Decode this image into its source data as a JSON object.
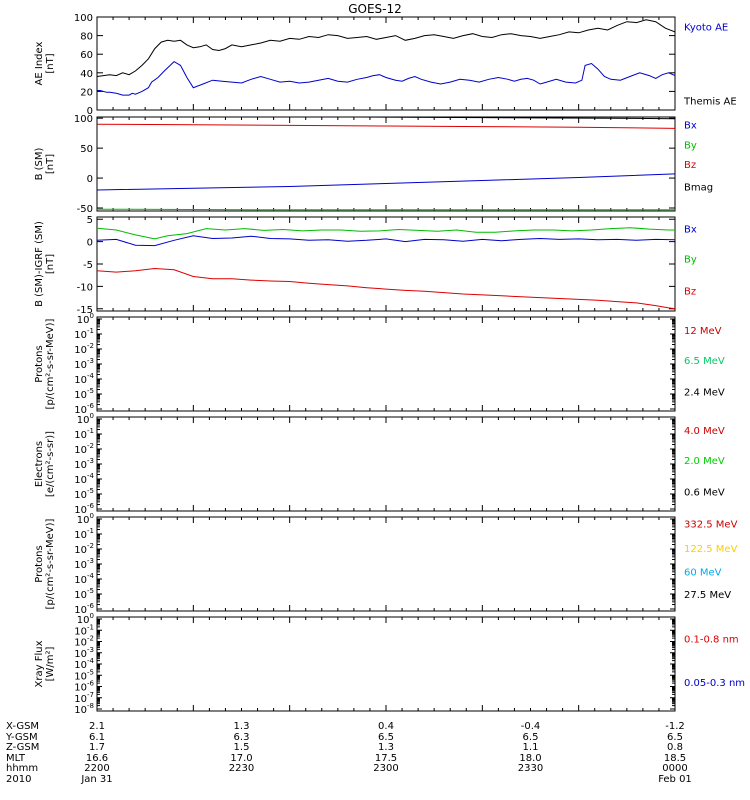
{
  "title": "GOES-12",
  "chart_data": [
    {
      "type": "line",
      "ylabel": [
        "AE Index",
        "[nT]"
      ],
      "ylim": [
        0,
        100
      ],
      "yticks": [
        "0",
        "20",
        "40",
        "60",
        "80",
        "100"
      ],
      "series": [
        {
          "name": "Kyoto AE",
          "color": "#0000cc",
          "label_offset": 0.1,
          "x": [
            0,
            1,
            3,
            4,
            6,
            8,
            10,
            11,
            12,
            14,
            16,
            17,
            19,
            21,
            24,
            26,
            28,
            30,
            33,
            36,
            39,
            42,
            45,
            48,
            51,
            54,
            57,
            60,
            63,
            66,
            69,
            72,
            75,
            78,
            81,
            84,
            86,
            88,
            90,
            93,
            95,
            97,
            99,
            101,
            104,
            107,
            110,
            113,
            116,
            119,
            122,
            125,
            128,
            130,
            132,
            134,
            136,
            138,
            140,
            143,
            146,
            149,
            151,
            152,
            154,
            156,
            158,
            160,
            163,
            166,
            169,
            172,
            174,
            176,
            178,
            180
          ],
          "y": [
            21,
            21,
            19,
            19,
            18,
            16,
            16,
            18,
            17,
            20,
            24,
            30,
            35,
            42,
            52,
            48,
            35,
            24,
            28,
            32,
            31,
            30,
            29,
            33,
            36,
            33,
            30,
            31,
            29,
            30,
            32,
            34,
            31,
            30,
            33,
            35,
            37,
            38,
            35,
            32,
            31,
            34,
            36,
            33,
            30,
            28,
            30,
            33,
            32,
            30,
            33,
            35,
            33,
            31,
            33,
            34,
            32,
            28,
            30,
            33,
            30,
            29,
            32,
            48,
            50,
            44,
            36,
            33,
            32,
            36,
            40,
            37,
            34,
            38,
            40,
            37
          ]
        },
        {
          "name": "Themis AE",
          "color": "#000000",
          "label_offset": 0.9,
          "x": [
            0,
            2,
            4,
            6,
            8,
            10,
            12,
            14,
            16,
            18,
            20,
            22,
            24,
            26,
            28,
            30,
            32,
            34,
            36,
            38,
            40,
            42,
            45,
            48,
            51,
            54,
            57,
            60,
            63,
            66,
            69,
            72,
            75,
            78,
            81,
            84,
            87,
            90,
            93,
            96,
            99,
            102,
            105,
            108,
            111,
            114,
            117,
            120,
            123,
            126,
            129,
            132,
            135,
            138,
            141,
            144,
            147,
            150,
            153,
            156,
            159,
            162,
            165,
            168,
            171,
            174,
            177,
            180
          ],
          "y": [
            36,
            37,
            38,
            37,
            40,
            38,
            42,
            48,
            55,
            66,
            73,
            75,
            74,
            75,
            70,
            67,
            68,
            70,
            65,
            64,
            66,
            70,
            68,
            70,
            72,
            75,
            74,
            77,
            76,
            79,
            78,
            81,
            80,
            77,
            78,
            79,
            76,
            78,
            80,
            75,
            77,
            80,
            81,
            79,
            77,
            80,
            82,
            79,
            78,
            81,
            82,
            80,
            79,
            77,
            79,
            81,
            84,
            83,
            86,
            88,
            86,
            91,
            95,
            94,
            97,
            95,
            88,
            84
          ]
        }
      ]
    },
    {
      "type": "line",
      "ylabel": [
        "B (SM)",
        "[nT]"
      ],
      "ylim": [
        -55,
        102
      ],
      "yticks": [
        "-50",
        "0",
        "50",
        "100"
      ],
      "series": [
        {
          "name": "Bx",
          "color": "#0000cc",
          "label_offset": 0.08,
          "x": [
            0,
            30,
            60,
            90,
            120,
            150,
            180
          ],
          "y": [
            -20,
            -17,
            -14,
            -9,
            -4,
            1,
            7
          ]
        },
        {
          "name": "By",
          "color": "#00bb00",
          "label_offset": 0.29,
          "x": [
            0,
            60,
            120,
            180
          ],
          "y": [
            -52,
            -53,
            -53,
            -53
          ]
        },
        {
          "name": "Bz",
          "color": "#dd0000",
          "label_offset": 0.5,
          "x": [
            0,
            30,
            60,
            90,
            120,
            150,
            180
          ],
          "y": [
            90,
            89,
            88,
            87,
            86,
            85,
            83
          ]
        },
        {
          "name": "Bmag",
          "color": "#000000",
          "label_offset": 0.74,
          "x": [
            0,
            40,
            80,
            120,
            160,
            180
          ],
          "y": [
            103,
            103,
            102,
            101,
            100,
            99
          ]
        }
      ]
    },
    {
      "type": "line",
      "ylabel": [
        "B (SM)-IGRF (SM)",
        "[nT]"
      ],
      "ylim": [
        -15.5,
        5.5
      ],
      "yticks": [
        "-15",
        "-10",
        "-5",
        "0",
        "5"
      ],
      "series": [
        {
          "name": "Bx",
          "color": "#0000cc",
          "label_offset": 0.12,
          "x": [
            0,
            6,
            12,
            18,
            24,
            30,
            36,
            42,
            48,
            54,
            60,
            66,
            72,
            78,
            84,
            90,
            96,
            102,
            108,
            114,
            120,
            126,
            132,
            138,
            144,
            150,
            156,
            162,
            168,
            174,
            180
          ],
          "y": [
            0.3,
            0.5,
            -0.8,
            -0.9,
            0.3,
            1.3,
            0.7,
            0.8,
            1.2,
            0.7,
            0.6,
            0.3,
            0.4,
            0.1,
            0.3,
            0.6,
            0.0,
            0.5,
            0.4,
            0.1,
            0.5,
            0.2,
            0.5,
            0.7,
            0.5,
            0.6,
            0.4,
            0.5,
            0.3,
            0.5,
            0.4
          ]
        },
        {
          "name": "By",
          "color": "#00bb00",
          "label_offset": 0.44,
          "x": [
            0,
            6,
            12,
            18,
            22,
            28,
            34,
            40,
            46,
            52,
            58,
            64,
            70,
            76,
            82,
            88,
            94,
            100,
            106,
            112,
            118,
            124,
            130,
            136,
            142,
            148,
            154,
            160,
            166,
            172,
            178,
            180
          ],
          "y": [
            3.0,
            2.6,
            1.5,
            0.6,
            1.3,
            1.8,
            2.9,
            2.6,
            2.9,
            2.5,
            2.7,
            2.4,
            2.6,
            2.6,
            2.3,
            2.4,
            2.7,
            2.5,
            2.3,
            2.6,
            2.1,
            2.1,
            2.4,
            2.6,
            2.6,
            2.4,
            2.6,
            2.9,
            3.1,
            2.8,
            2.6,
            2.6
          ]
        },
        {
          "name": "Bz",
          "color": "#dd0000",
          "label_offset": 0.78,
          "x": [
            0,
            6,
            12,
            18,
            24,
            30,
            36,
            42,
            48,
            54,
            60,
            66,
            72,
            78,
            84,
            90,
            96,
            102,
            108,
            114,
            120,
            126,
            132,
            138,
            144,
            150,
            156,
            162,
            168,
            174,
            178,
            180
          ],
          "y": [
            -6.5,
            -6.8,
            -6.5,
            -6.0,
            -6.3,
            -7.8,
            -8.3,
            -8.3,
            -8.6,
            -8.8,
            -8.9,
            -9.3,
            -9.6,
            -9.9,
            -10.3,
            -10.6,
            -10.9,
            -11.1,
            -11.4,
            -11.7,
            -11.9,
            -12.1,
            -12.3,
            -12.5,
            -12.7,
            -12.9,
            -13.1,
            -13.4,
            -13.7,
            -14.3,
            -14.8,
            -15.0
          ]
        }
      ]
    },
    {
      "type": "line",
      "ylabel": [
        "Protons",
        "[p/(cm²-s-sr-MeV)]"
      ],
      "yscale": "log",
      "ytick_exp": [
        "0",
        "-1",
        "-2",
        "-3",
        "-4",
        "-5",
        "-6"
      ],
      "legend": [
        {
          "name": "12 MeV",
          "color": "#cc0000",
          "label_offset": 0.14
        },
        {
          "name": "6.5 MeV",
          "color": "#00cc66",
          "label_offset": 0.46
        },
        {
          "name": "2.4 MeV",
          "color": "#000000",
          "label_offset": 0.79
        }
      ]
    },
    {
      "type": "line",
      "ylabel": [
        "Electrons",
        "[e/(cm²-s-sr)]"
      ],
      "yscale": "log",
      "ytick_exp": [
        "0",
        "-1",
        "-2",
        "-3",
        "-4",
        "-5",
        "-6"
      ],
      "legend": [
        {
          "name": "4.0 MeV",
          "color": "#cc0000",
          "label_offset": 0.14
        },
        {
          "name": "2.0 MeV",
          "color": "#00cc00",
          "label_offset": 0.46
        },
        {
          "name": "0.6 MeV",
          "color": "#000000",
          "label_offset": 0.79
        }
      ]
    },
    {
      "type": "line",
      "ylabel": [
        "Protons",
        "[p/(cm²-s-sr-MeV)]"
      ],
      "yscale": "log",
      "ytick_exp": [
        "0",
        "-1",
        "-2",
        "-3",
        "-4",
        "-5",
        "-6"
      ],
      "legend": [
        {
          "name": "332.5 MeV",
          "color": "#cc0000",
          "label_offset": 0.07
        },
        {
          "name": "122.5 MeV",
          "color": "#ffcc00",
          "label_offset": 0.33
        },
        {
          "name": "60 MeV",
          "color": "#00aaee",
          "label_offset": 0.58
        },
        {
          "name": "27.5 MeV",
          "color": "#000000",
          "label_offset": 0.82
        }
      ]
    },
    {
      "type": "line",
      "ylabel": [
        "Xray  Flux",
        "[W/m²]"
      ],
      "yscale": "log",
      "ytick_exp": [
        "0",
        "-1",
        "-2",
        "-3",
        "-4",
        "-5",
        "-6",
        "-7",
        "-8"
      ],
      "legend": [
        {
          "name": "0.1-0.8 nm",
          "color": "#dd0000",
          "label_offset": 0.23
        },
        {
          "name": "0.05-0.3 nm",
          "color": "#0000cc",
          "label_offset": 0.69
        }
      ]
    }
  ],
  "xaxis": {
    "minutes_per_tick": 30,
    "row_labels": [
      "X-GSM",
      "Y-GSM",
      "Z-GSM",
      "MLT",
      "hhmm",
      "2010"
    ],
    "columns": [
      [
        "2.1",
        "6.1",
        "1.7",
        "16.6",
        "2200",
        "Jan 31"
      ],
      [
        "1.3",
        "6.3",
        "1.5",
        "17.0",
        "2230",
        ""
      ],
      [
        "0.4",
        "6.5",
        "1.3",
        "17.5",
        "2300",
        ""
      ],
      [
        "-0.4",
        "6.5",
        "1.1",
        "18.0",
        "2330",
        ""
      ],
      [
        "-1.2",
        "6.5",
        "0.8",
        "18.5",
        "0000",
        "Feb 01"
      ]
    ]
  }
}
